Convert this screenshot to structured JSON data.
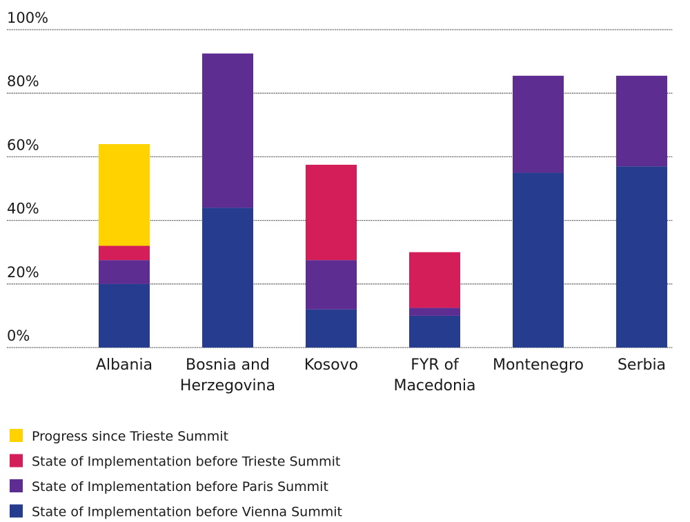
{
  "chart_data": {
    "type": "stacked_bar",
    "categories": [
      "Albania",
      "Bosnia and Herzegovina",
      "Kosovo",
      "FYR of Macedonia",
      "Montenegro",
      "Serbia"
    ],
    "series": [
      {
        "name": "State of Implementation before Vienna Summit",
        "color": "#263d8f",
        "values": [
          20,
          44,
          12,
          10,
          55,
          57
        ]
      },
      {
        "name": "State of Implementation before Paris Summit",
        "color": "#5e2d91",
        "values": [
          7.5,
          48.5,
          15.5,
          2.5,
          30.5,
          28.5
        ]
      },
      {
        "name": "State of Implementation before Trieste Summit",
        "color": "#d41e5a",
        "values": [
          4.5,
          null,
          30,
          17.5,
          null,
          null
        ]
      },
      {
        "name": "Progress since Trieste Summit",
        "color": "#ffd200",
        "values": [
          32,
          null,
          null,
          null,
          null,
          null
        ]
      }
    ],
    "ylim": [
      0,
      100
    ],
    "yticks": [
      {
        "value": 0,
        "label": "0%"
      },
      {
        "value": 20,
        "label": "20%"
      },
      {
        "value": 40,
        "label": "40%"
      },
      {
        "value": 60,
        "label": "60%"
      },
      {
        "value": 80,
        "label": "80%"
      },
      {
        "value": 100,
        "label": "100%"
      }
    ],
    "grid": true
  }
}
